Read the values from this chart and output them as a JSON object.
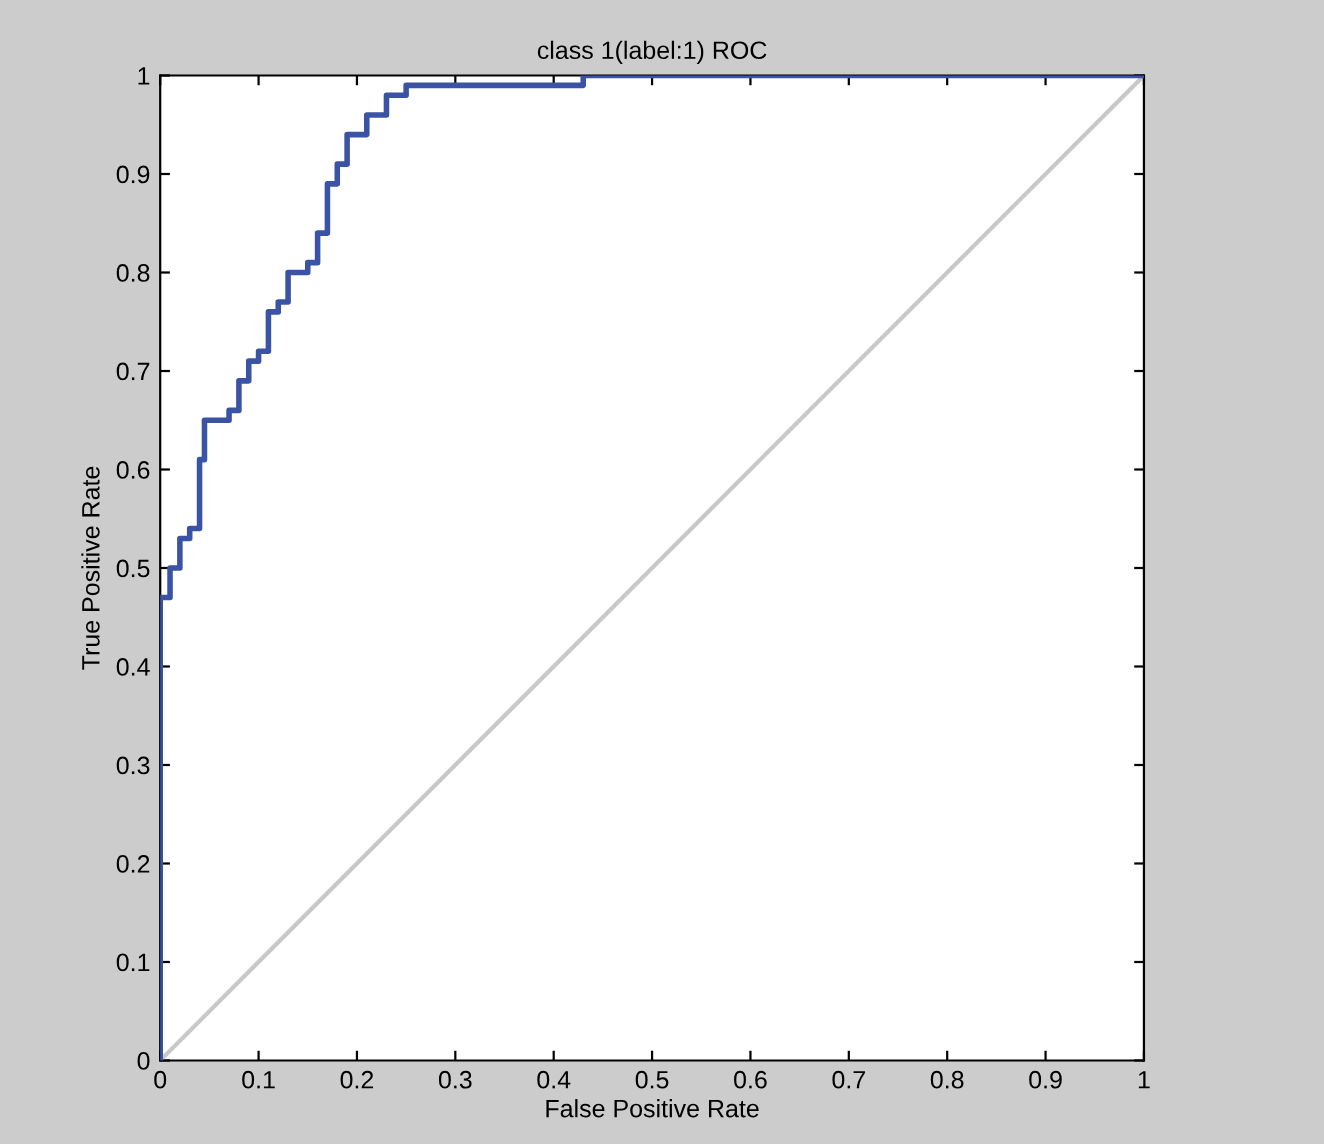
{
  "chart_data": {
    "type": "step",
    "title": "class 1(label:1) ROC",
    "xlabel": "False Positive Rate",
    "ylabel": "True Positive Rate",
    "series": [
      {
        "color": "#3a53a4",
        "x": [
          0,
          0,
          0.01,
          0.02,
          0.03,
          0.04,
          0.045,
          0.07,
          0.08,
          0.09,
          0.1,
          0.11,
          0.12,
          0.13,
          0.15,
          0.16,
          0.17,
          0.18,
          0.19,
          0.21,
          0.23,
          0.25,
          0.43,
          1
        ],
        "values": [
          0,
          0.47,
          0.5,
          0.53,
          0.54,
          0.61,
          0.65,
          0.66,
          0.69,
          0.71,
          0.72,
          0.76,
          0.77,
          0.8,
          0.81,
          0.84,
          0.89,
          0.91,
          0.94,
          0.96,
          0.98,
          0.99,
          1,
          1
        ]
      },
      {
        "type": "line",
        "color": "#c8c8c8",
        "x": [
          0,
          1
        ],
        "values": [
          0,
          1
        ]
      }
    ],
    "xlim": [
      0,
      1
    ],
    "ylim": [
      0,
      1
    ],
    "xticks": [
      0,
      0.1,
      0.2,
      0.3,
      0.4,
      0.5,
      0.6,
      0.7,
      0.8,
      0.9,
      1
    ],
    "yticks": [
      0,
      0.1,
      0.2,
      0.3,
      0.4,
      0.5,
      0.6,
      0.7,
      0.8,
      0.9,
      1
    ],
    "grid": false,
    "legend": false
  }
}
